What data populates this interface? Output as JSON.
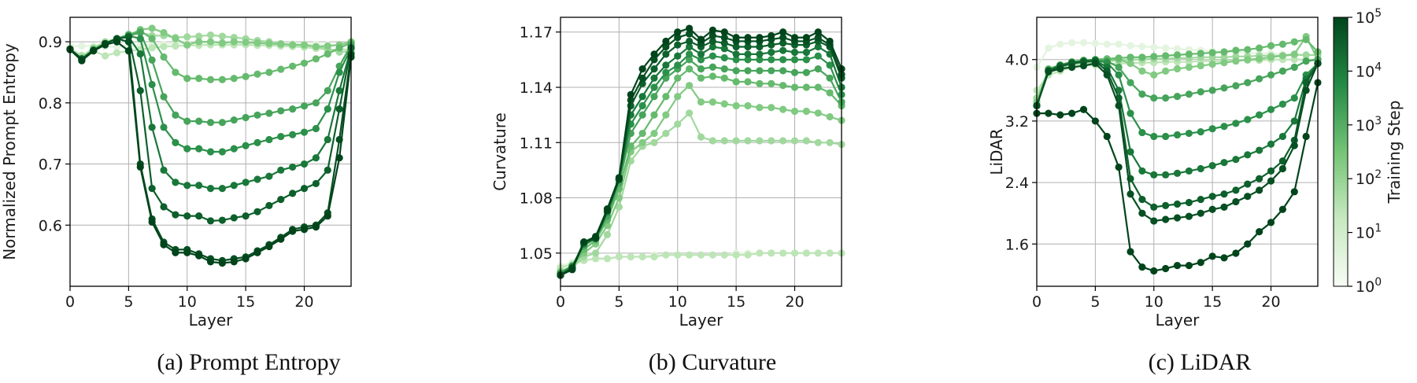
{
  "chart_data": [
    {
      "type": "line",
      "caption": "(a) Prompt Entropy",
      "xlabel": "Layer",
      "ylabel": "Normalized Prompt Entropy",
      "xlim": [
        0,
        24
      ],
      "ylim": [
        0.5,
        0.94
      ],
      "xticks": [
        0,
        5,
        10,
        15,
        20
      ],
      "yticks": [
        0.6,
        0.7,
        0.8,
        0.9
      ],
      "ytick_labels": [
        "0.6",
        "0.7",
        "0.8",
        "0.9"
      ],
      "grid": true,
      "series": [
        {
          "step": 1,
          "values": [
            0.893,
            0.893,
            0.893,
            0.892,
            0.892,
            0.893,
            0.894,
            0.895,
            0.896,
            0.897,
            0.898,
            0.898,
            0.898,
            0.898,
            0.898,
            0.898,
            0.897,
            0.897,
            0.897,
            0.897,
            0.896,
            0.896,
            0.895,
            0.895,
            0.894
          ]
        },
        {
          "step": 10,
          "values": [
            0.888,
            0.878,
            0.885,
            0.877,
            0.882,
            0.885,
            0.887,
            0.89,
            0.892,
            0.893,
            0.894,
            0.894,
            0.895,
            0.895,
            0.895,
            0.895,
            0.894,
            0.894,
            0.893,
            0.892,
            0.891,
            0.889,
            0.887,
            0.887,
            0.888
          ]
        },
        {
          "step": 30,
          "values": [
            0.888,
            0.875,
            0.89,
            0.9,
            0.905,
            0.91,
            0.915,
            0.91,
            0.91,
            0.907,
            0.908,
            0.909,
            0.911,
            0.909,
            0.907,
            0.905,
            0.902,
            0.9,
            0.897,
            0.895,
            0.894,
            0.892,
            0.888,
            0.883,
            0.885
          ]
        },
        {
          "step": 100,
          "values": [
            0.888,
            0.873,
            0.888,
            0.897,
            0.905,
            0.91,
            0.92,
            0.922,
            0.915,
            0.905,
            0.895,
            0.9,
            0.9,
            0.898,
            0.9,
            0.899,
            0.898,
            0.897,
            0.896,
            0.895,
            0.895,
            0.892,
            0.893,
            0.895,
            0.9
          ]
        },
        {
          "step": 300,
          "values": [
            0.888,
            0.872,
            0.887,
            0.897,
            0.905,
            0.912,
            0.918,
            0.905,
            0.875,
            0.85,
            0.84,
            0.84,
            0.838,
            0.838,
            0.84,
            0.843,
            0.847,
            0.85,
            0.855,
            0.86,
            0.865,
            0.872,
            0.88,
            0.89,
            0.898
          ]
        },
        {
          "step": 1000,
          "values": [
            0.888,
            0.872,
            0.886,
            0.897,
            0.905,
            0.91,
            0.915,
            0.87,
            0.81,
            0.78,
            0.77,
            0.77,
            0.768,
            0.768,
            0.772,
            0.776,
            0.78,
            0.783,
            0.787,
            0.79,
            0.795,
            0.8,
            0.82,
            0.86,
            0.895
          ]
        },
        {
          "step": 3000,
          "values": [
            0.888,
            0.872,
            0.886,
            0.897,
            0.905,
            0.91,
            0.905,
            0.83,
            0.76,
            0.735,
            0.725,
            0.725,
            0.72,
            0.72,
            0.725,
            0.73,
            0.735,
            0.74,
            0.745,
            0.748,
            0.752,
            0.758,
            0.79,
            0.85,
            0.89
          ]
        },
        {
          "step": 10000,
          "values": [
            0.888,
            0.872,
            0.886,
            0.897,
            0.905,
            0.908,
            0.88,
            0.76,
            0.69,
            0.67,
            0.665,
            0.665,
            0.66,
            0.66,
            0.665,
            0.67,
            0.675,
            0.68,
            0.69,
            0.695,
            0.7,
            0.71,
            0.74,
            0.82,
            0.89
          ]
        },
        {
          "step": 30000,
          "values": [
            0.888,
            0.872,
            0.886,
            0.897,
            0.905,
            0.908,
            0.82,
            0.66,
            0.63,
            0.617,
            0.615,
            0.615,
            0.607,
            0.608,
            0.612,
            0.615,
            0.622,
            0.632,
            0.642,
            0.652,
            0.66,
            0.668,
            0.69,
            0.79,
            0.89
          ]
        },
        {
          "step": 60000,
          "values": [
            0.888,
            0.87,
            0.886,
            0.897,
            0.905,
            0.9,
            0.7,
            0.61,
            0.572,
            0.56,
            0.56,
            0.553,
            0.545,
            0.542,
            0.545,
            0.548,
            0.558,
            0.568,
            0.58,
            0.593,
            0.597,
            0.6,
            0.62,
            0.74,
            0.88
          ]
        },
        {
          "step": 100000,
          "values": [
            0.887,
            0.869,
            0.885,
            0.895,
            0.9,
            0.885,
            0.695,
            0.605,
            0.568,
            0.555,
            0.555,
            0.55,
            0.54,
            0.538,
            0.54,
            0.545,
            0.555,
            0.565,
            0.577,
            0.59,
            0.593,
            0.597,
            0.615,
            0.71,
            0.875
          ]
        }
      ]
    },
    {
      "type": "line",
      "caption": "(b) Curvature",
      "xlabel": "Layer",
      "ylabel": "Curvature",
      "xlim": [
        0,
        24
      ],
      "ylim": [
        1.032,
        1.178
      ],
      "xticks": [
        0,
        5,
        10,
        15,
        20
      ],
      "yticks": [
        1.05,
        1.08,
        1.11,
        1.14,
        1.17
      ],
      "ytick_labels": [
        "1.05",
        "1.08",
        "1.11",
        "1.14",
        "1.17"
      ],
      "grid": true,
      "series": [
        {
          "step": 1,
          "values": [
            1.043,
            1.045,
            1.046,
            1.047,
            1.047,
            1.048,
            1.048,
            1.048,
            1.049,
            1.049,
            1.049,
            1.049,
            1.049,
            1.049,
            1.049,
            1.05,
            1.05,
            1.05,
            1.05,
            1.05,
            1.05,
            1.05,
            1.05,
            1.05,
            1.05
          ]
        },
        {
          "step": 10,
          "values": [
            1.042,
            1.044,
            1.046,
            1.047,
            1.047,
            1.048,
            1.048,
            1.048,
            1.048,
            1.049,
            1.049,
            1.049,
            1.049,
            1.049,
            1.049,
            1.049,
            1.049,
            1.05,
            1.05,
            1.05,
            1.05,
            1.05,
            1.05,
            1.05,
            1.05
          ]
        },
        {
          "step": 30,
          "values": [
            1.04,
            1.042,
            1.048,
            1.05,
            1.06,
            1.075,
            1.1,
            1.108,
            1.11,
            1.115,
            1.12,
            1.126,
            1.113,
            1.111,
            1.111,
            1.111,
            1.111,
            1.111,
            1.111,
            1.111,
            1.111,
            1.111,
            1.11,
            1.11,
            1.109
          ]
        },
        {
          "step": 100,
          "values": [
            1.04,
            1.043,
            1.05,
            1.055,
            1.065,
            1.08,
            1.105,
            1.11,
            1.115,
            1.125,
            1.135,
            1.141,
            1.132,
            1.132,
            1.131,
            1.13,
            1.13,
            1.129,
            1.129,
            1.128,
            1.127,
            1.127,
            1.126,
            1.124,
            1.122
          ]
        },
        {
          "step": 300,
          "values": [
            1.039,
            1.043,
            1.052,
            1.057,
            1.068,
            1.085,
            1.108,
            1.115,
            1.125,
            1.135,
            1.145,
            1.15,
            1.145,
            1.146,
            1.145,
            1.143,
            1.143,
            1.142,
            1.142,
            1.141,
            1.14,
            1.14,
            1.14,
            1.137,
            1.13
          ]
        },
        {
          "step": 1000,
          "values": [
            1.039,
            1.043,
            1.054,
            1.058,
            1.07,
            1.088,
            1.115,
            1.125,
            1.135,
            1.145,
            1.15,
            1.155,
            1.15,
            1.151,
            1.15,
            1.149,
            1.149,
            1.149,
            1.149,
            1.149,
            1.148,
            1.148,
            1.15,
            1.145,
            1.132
          ]
        },
        {
          "step": 3000,
          "values": [
            1.039,
            1.043,
            1.055,
            1.058,
            1.072,
            1.09,
            1.12,
            1.13,
            1.14,
            1.148,
            1.152,
            1.158,
            1.155,
            1.157,
            1.156,
            1.155,
            1.155,
            1.155,
            1.155,
            1.155,
            1.155,
            1.155,
            1.157,
            1.152,
            1.136
          ]
        },
        {
          "step": 10000,
          "values": [
            1.038,
            1.042,
            1.055,
            1.058,
            1.073,
            1.09,
            1.125,
            1.135,
            1.145,
            1.152,
            1.157,
            1.162,
            1.158,
            1.162,
            1.161,
            1.158,
            1.158,
            1.158,
            1.159,
            1.16,
            1.159,
            1.159,
            1.162,
            1.158,
            1.14
          ]
        },
        {
          "step": 30000,
          "values": [
            1.038,
            1.042,
            1.056,
            1.058,
            1.073,
            1.09,
            1.13,
            1.142,
            1.15,
            1.158,
            1.163,
            1.165,
            1.162,
            1.165,
            1.164,
            1.162,
            1.162,
            1.162,
            1.163,
            1.164,
            1.163,
            1.163,
            1.165,
            1.162,
            1.145
          ]
        },
        {
          "step": 60000,
          "values": [
            1.038,
            1.042,
            1.056,
            1.058,
            1.073,
            1.09,
            1.133,
            1.145,
            1.155,
            1.162,
            1.167,
            1.169,
            1.164,
            1.168,
            1.167,
            1.165,
            1.165,
            1.165,
            1.166,
            1.167,
            1.165,
            1.165,
            1.167,
            1.163,
            1.147
          ]
        },
        {
          "step": 100000,
          "values": [
            1.038,
            1.041,
            1.056,
            1.059,
            1.074,
            1.091,
            1.136,
            1.15,
            1.158,
            1.165,
            1.17,
            1.172,
            1.166,
            1.171,
            1.17,
            1.167,
            1.167,
            1.167,
            1.168,
            1.17,
            1.167,
            1.167,
            1.17,
            1.165,
            1.15
          ]
        }
      ]
    },
    {
      "type": "line",
      "caption": "(c) LiDAR",
      "xlabel": "Layer",
      "ylabel": "LiDAR",
      "xlim": [
        0,
        24
      ],
      "ylim": [
        1.05,
        4.55
      ],
      "xticks": [
        0,
        5,
        10,
        15,
        20
      ],
      "yticks": [
        1.6,
        2.4,
        3.2,
        4.0
      ],
      "ytick_labels": [
        "1.6",
        "2.4",
        "3.2",
        "4.0"
      ],
      "grid": true,
      "series": [
        {
          "step": 1,
          "values": [
            3.9,
            4.15,
            4.2,
            4.22,
            4.22,
            4.21,
            4.2,
            4.2,
            4.18,
            4.17,
            4.16,
            4.15,
            4.14,
            4.13,
            4.12,
            4.11,
            4.1,
            4.1,
            4.09,
            4.08,
            4.08,
            4.07,
            4.06,
            4.06,
            4.05
          ]
        },
        {
          "step": 10,
          "values": [
            3.6,
            3.8,
            3.85,
            3.9,
            3.92,
            3.93,
            3.94,
            3.95,
            3.95,
            3.96,
            3.96,
            3.97,
            3.97,
            3.97,
            3.98,
            3.98,
            3.98,
            3.99,
            3.99,
            3.99,
            4.0,
            4.0,
            4.0,
            4.0,
            4.0
          ]
        },
        {
          "step": 30,
          "values": [
            3.5,
            3.85,
            3.9,
            3.93,
            3.95,
            3.97,
            3.98,
            3.99,
            4.0,
            4.0,
            4.01,
            4.01,
            4.02,
            4.02,
            4.03,
            4.03,
            4.03,
            4.04,
            4.04,
            4.05,
            4.05,
            4.05,
            4.06,
            4.06,
            4.06
          ]
        },
        {
          "step": 100,
          "values": [
            3.45,
            3.88,
            3.93,
            3.96,
            3.98,
            4.0,
            4.0,
            4.0,
            3.95,
            3.85,
            3.8,
            3.85,
            3.88,
            3.9,
            3.92,
            3.94,
            3.96,
            3.98,
            4.0,
            4.01,
            4.03,
            4.05,
            4.07,
            4.3,
            4.0
          ]
        },
        {
          "step": 300,
          "values": [
            3.4,
            3.87,
            3.93,
            3.97,
            3.99,
            4.0,
            4.01,
            4.02,
            4.03,
            4.03,
            4.04,
            4.05,
            4.06,
            4.07,
            4.08,
            4.09,
            4.1,
            4.12,
            4.13,
            4.15,
            4.18,
            4.2,
            4.23,
            4.26,
            4.1
          ]
        },
        {
          "step": 1000,
          "values": [
            3.4,
            3.87,
            3.93,
            3.97,
            3.99,
            4.0,
            3.98,
            3.9,
            3.7,
            3.55,
            3.5,
            3.5,
            3.52,
            3.55,
            3.58,
            3.6,
            3.63,
            3.66,
            3.7,
            3.75,
            3.8,
            3.85,
            3.9,
            3.98,
            4.0
          ]
        },
        {
          "step": 3000,
          "values": [
            3.4,
            3.86,
            3.92,
            3.96,
            3.98,
            3.99,
            3.96,
            3.8,
            3.3,
            3.05,
            3.0,
            3.0,
            3.02,
            3.04,
            3.06,
            3.1,
            3.13,
            3.17,
            3.22,
            3.28,
            3.35,
            3.42,
            3.5,
            3.8,
            3.95
          ]
        },
        {
          "step": 10000,
          "values": [
            3.4,
            3.86,
            3.92,
            3.96,
            3.98,
            3.99,
            3.9,
            3.6,
            2.8,
            2.55,
            2.5,
            2.5,
            2.52,
            2.55,
            2.58,
            2.62,
            2.66,
            2.7,
            2.76,
            2.82,
            2.9,
            3.0,
            3.2,
            3.75,
            3.95
          ]
        },
        {
          "step": 30000,
          "values": [
            3.4,
            3.85,
            3.91,
            3.95,
            3.97,
            3.98,
            3.85,
            3.5,
            2.45,
            2.18,
            2.08,
            2.1,
            2.12,
            2.14,
            2.18,
            2.22,
            2.25,
            2.3,
            2.38,
            2.45,
            2.55,
            2.68,
            2.95,
            3.7,
            3.95
          ]
        },
        {
          "step": 60000,
          "values": [
            3.4,
            3.84,
            3.88,
            3.9,
            3.92,
            3.95,
            3.8,
            3.4,
            2.25,
            2.0,
            1.9,
            1.92,
            1.94,
            1.96,
            2.0,
            2.05,
            2.08,
            2.15,
            2.22,
            2.3,
            2.42,
            2.58,
            2.88,
            3.6,
            3.95
          ]
        },
        {
          "step": 100000,
          "values": [
            3.3,
            3.3,
            3.28,
            3.3,
            3.35,
            3.2,
            3.0,
            2.6,
            1.5,
            1.3,
            1.25,
            1.28,
            1.32,
            1.32,
            1.36,
            1.44,
            1.42,
            1.48,
            1.6,
            1.76,
            1.88,
            2.05,
            2.28,
            3.0,
            3.7
          ]
        }
      ]
    }
  ],
  "colorbar": {
    "label": "Training Step",
    "tick_bases": [
      "10",
      "10",
      "10",
      "10",
      "10",
      "10"
    ],
    "tick_exponents": [
      "0",
      "1",
      "2",
      "3",
      "4",
      "5"
    ],
    "scale": "log",
    "range": [
      1,
      100000
    ],
    "cmap_light": "#f7fcf5",
    "cmap_mid": "#74c476",
    "cmap_dark": "#00441b"
  },
  "style": {
    "grid_color": "#b0b0b0",
    "axis_color": "#000000"
  }
}
